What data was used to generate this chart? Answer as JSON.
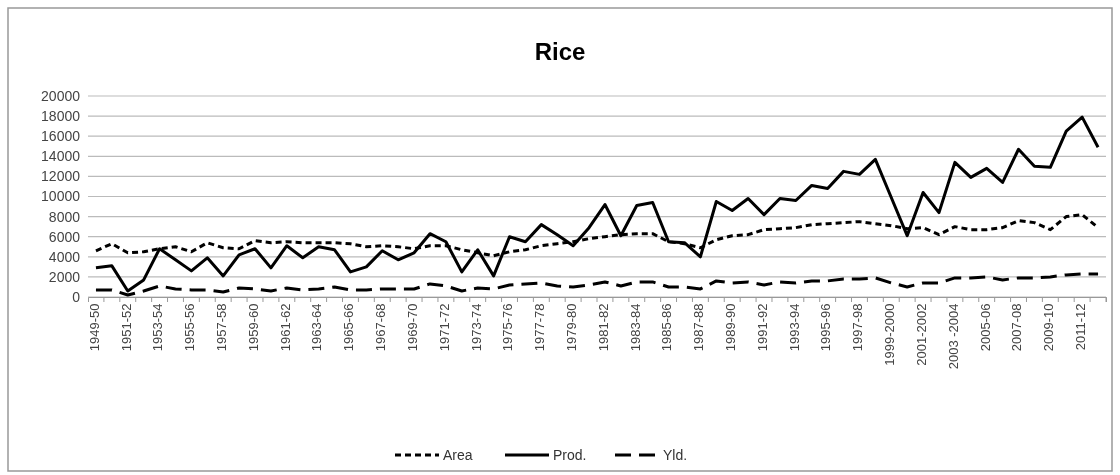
{
  "chart_data": {
    "type": "line",
    "title": "Rice",
    "categories": [
      "1949-50",
      null,
      "1951-52",
      null,
      "1953-54",
      null,
      "1955-56",
      null,
      "1957-58",
      null,
      "1959-60",
      null,
      "1961-62",
      null,
      "1963-64",
      null,
      "1965-66",
      null,
      "1967-68",
      null,
      "1969-70",
      null,
      "1971-72",
      null,
      "1973-74",
      null,
      "1975-76",
      null,
      "1977-78",
      null,
      "1979-80",
      null,
      "1981-82",
      null,
      "1983-84",
      null,
      "1985-86",
      null,
      "1987-88",
      null,
      "1989-90",
      null,
      "1991-92",
      null,
      "1993-94",
      null,
      "1995-96",
      null,
      "1997-98",
      null,
      "1999-2000",
      null,
      "2001-2002",
      null,
      "2003 -2004",
      null,
      "2005-06",
      null,
      "2007-08",
      null,
      "2009-10",
      null,
      "2011-12",
      null
    ],
    "series": [
      {
        "name": "Area",
        "color": "#000000",
        "line_style": "dashed",
        "values": [
          4600,
          5300,
          4400,
          4500,
          4800,
          5000,
          4500,
          5400,
          4900,
          4800,
          5600,
          5400,
          5500,
          5400,
          5400,
          5400,
          5300,
          5000,
          5100,
          5000,
          4800,
          5100,
          5100,
          4700,
          4400,
          4100,
          4500,
          4700,
          5100,
          5300,
          5500,
          5800,
          6000,
          6200,
          6300,
          6300,
          5500,
          5300,
          4900,
          5700,
          6100,
          6200,
          6700,
          6800,
          6900,
          7200,
          7300,
          7400,
          7500,
          7300,
          7100,
          6800,
          6900,
          6200,
          7000,
          6700,
          6700,
          6900,
          7600,
          7400,
          6700,
          8000,
          8200,
          6900
        ]
      },
      {
        "name": "Prod.",
        "color": "#000000",
        "line_style": "solid",
        "values": [
          2900,
          3100,
          600,
          1700,
          4800,
          3700,
          2600,
          3900,
          2100,
          4200,
          4800,
          2900,
          5100,
          3900,
          5000,
          4700,
          2500,
          3000,
          4600,
          3700,
          4400,
          6300,
          5500,
          2500,
          4700,
          2100,
          6000,
          5500,
          7200,
          6200,
          5100,
          6900,
          9200,
          6100,
          9100,
          9400,
          5500,
          5400,
          4000,
          9500,
          8600,
          9800,
          8200,
          9800,
          9600,
          11100,
          10800,
          12500,
          12200,
          13700,
          9900,
          6100,
          10400,
          8400,
          13400,
          11900,
          12800,
          11400,
          14700,
          13000,
          12900,
          16500,
          17900,
          14900
        ]
      },
      {
        "name": "Yld.",
        "color": "#000000",
        "line_style": "longdash",
        "values": [
          700,
          700,
          200,
          600,
          1100,
          800,
          700,
          700,
          500,
          900,
          800,
          600,
          900,
          700,
          800,
          1000,
          700,
          700,
          800,
          800,
          800,
          1300,
          1100,
          600,
          900,
          800,
          1200,
          1300,
          1400,
          1100,
          1000,
          1200,
          1500,
          1100,
          1500,
          1500,
          1000,
          1000,
          800,
          1600,
          1400,
          1500,
          1200,
          1500,
          1400,
          1600,
          1600,
          1800,
          1800,
          1900,
          1400,
          1000,
          1400,
          1400,
          1900,
          1900,
          2000,
          1700,
          1900,
          1900,
          2000,
          2200,
          2300,
          2300
        ]
      }
    ],
    "ylim": [
      0,
      20000
    ],
    "yticks": [
      0,
      2000,
      4000,
      6000,
      8000,
      10000,
      12000,
      14000,
      16000,
      18000,
      20000
    ],
    "grid": "y",
    "legend": "bottom"
  }
}
